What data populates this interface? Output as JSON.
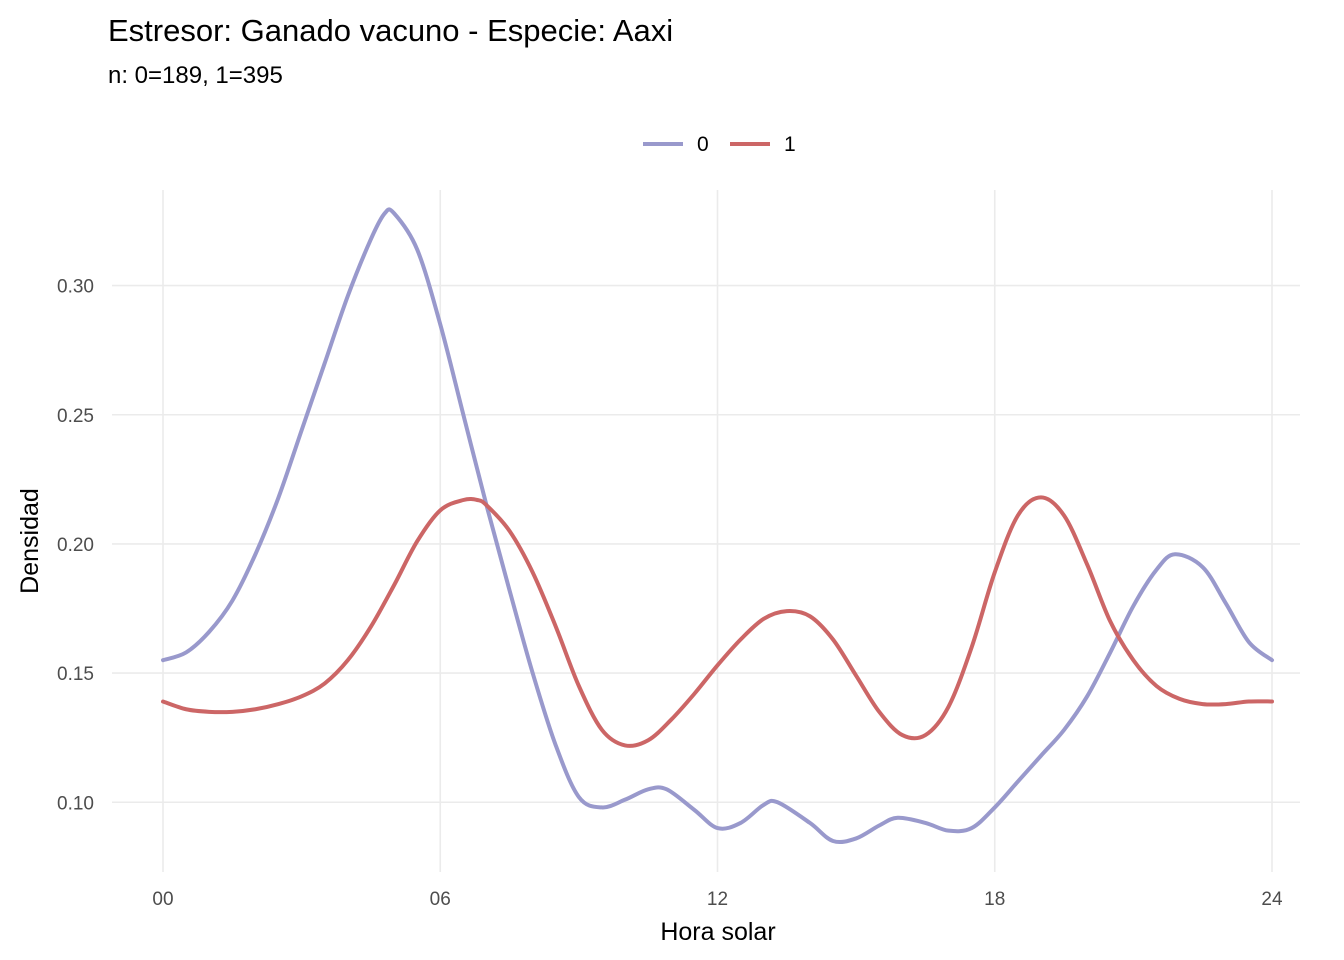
{
  "chart_data": {
    "type": "line",
    "title": "Estresor: Ganado vacuno - Especie:  Aaxi",
    "subtitle": "n:  0=189, 1=395",
    "xlabel": "Hora solar",
    "ylabel": "Densidad",
    "xlim": [
      0,
      24
    ],
    "ylim": [
      0.073,
      0.337
    ],
    "x_ticks": [
      0,
      6,
      12,
      18,
      24
    ],
    "x_tick_labels": [
      "00",
      "06",
      "12",
      "18",
      "24"
    ],
    "y_ticks": [
      0.1,
      0.15,
      0.2,
      0.25,
      0.3
    ],
    "y_tick_labels": [
      "0.10",
      "0.15",
      "0.20",
      "0.25",
      "0.30"
    ],
    "grid": true,
    "legend_position": "top",
    "series": [
      {
        "name": "0",
        "color": "#9999cc",
        "x": [
          0,
          0.5,
          1,
          1.5,
          2,
          2.5,
          3,
          3.5,
          4,
          4.5,
          4.8,
          5,
          5.5,
          6,
          6.5,
          7,
          7.5,
          8,
          8.5,
          9,
          9.5,
          10,
          10.5,
          10.9,
          11.5,
          12,
          12.5,
          13,
          13.3,
          14,
          14.5,
          15,
          15.5,
          15.9,
          16.5,
          17,
          17.5,
          18,
          18.5,
          19,
          19.5,
          20,
          20.5,
          21,
          21.5,
          21.9,
          22.5,
          23,
          23.5,
          24
        ],
        "y": [
          0.155,
          0.158,
          0.166,
          0.178,
          0.196,
          0.218,
          0.244,
          0.27,
          0.296,
          0.318,
          0.328,
          0.328,
          0.314,
          0.285,
          0.25,
          0.215,
          0.182,
          0.15,
          0.122,
          0.102,
          0.098,
          0.101,
          0.105,
          0.105,
          0.097,
          0.09,
          0.092,
          0.099,
          0.1,
          0.092,
          0.085,
          0.086,
          0.091,
          0.094,
          0.092,
          0.089,
          0.09,
          0.098,
          0.108,
          0.118,
          0.128,
          0.141,
          0.158,
          0.176,
          0.19,
          0.196,
          0.191,
          0.177,
          0.162,
          0.155
        ]
      },
      {
        "name": "1",
        "color": "#cc6666",
        "x": [
          0,
          0.5,
          1,
          1.5,
          2,
          2.5,
          3,
          3.5,
          4,
          4.5,
          5,
          5.5,
          6,
          6.5,
          6.8,
          7,
          7.5,
          8,
          8.5,
          9,
          9.5,
          10,
          10.5,
          11,
          11.5,
          12,
          12.5,
          13,
          13.5,
          14,
          14.5,
          15,
          15.5,
          16,
          16.5,
          17,
          17.5,
          18,
          18.5,
          19,
          19.5,
          20,
          20.5,
          21,
          21.5,
          22,
          22.5,
          23,
          23.5,
          24
        ],
        "y": [
          0.139,
          0.136,
          0.135,
          0.135,
          0.136,
          0.138,
          0.141,
          0.146,
          0.155,
          0.168,
          0.184,
          0.201,
          0.213,
          0.217,
          0.217,
          0.215,
          0.205,
          0.189,
          0.168,
          0.145,
          0.128,
          0.122,
          0.124,
          0.132,
          0.142,
          0.153,
          0.163,
          0.171,
          0.174,
          0.172,
          0.163,
          0.149,
          0.135,
          0.126,
          0.126,
          0.137,
          0.16,
          0.189,
          0.211,
          0.218,
          0.211,
          0.192,
          0.17,
          0.155,
          0.145,
          0.14,
          0.138,
          0.138,
          0.139,
          0.139
        ]
      }
    ]
  }
}
